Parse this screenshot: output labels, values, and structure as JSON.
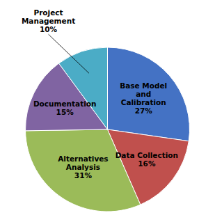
{
  "chart_data": {
    "type": "pie",
    "categories": [
      "Base Model\nand\nCalibration",
      "Data Collection",
      "Alternatives\nAnalysis",
      "Documentation",
      "Project\nManagement"
    ],
    "values": [
      27,
      16,
      31,
      15,
      10
    ],
    "value_labels": [
      "27%",
      "16%",
      "31%",
      "15%",
      "10%"
    ],
    "data_labels": true,
    "colors": [
      "#4472C4",
      "#C0504D",
      "#9BBB59",
      "#8064A2",
      "#4BACC6"
    ]
  }
}
